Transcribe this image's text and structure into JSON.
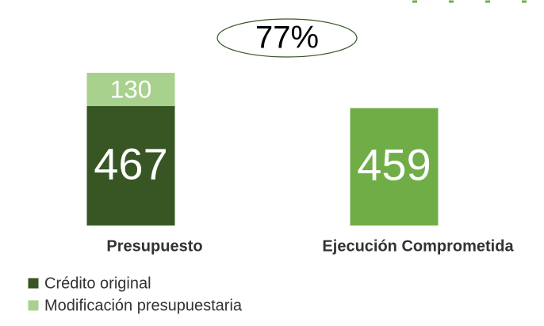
{
  "chart_data": {
    "type": "bar",
    "stacked": true,
    "annotation": "77%",
    "categories": [
      "Presupuesto",
      "Ejecución Comprometida"
    ],
    "series": [
      {
        "name": "Crédito original",
        "color": "#375623",
        "values": [
          467,
          null
        ]
      },
      {
        "name": "Modificación presupuestaria",
        "color": "#a9d18e",
        "values": [
          130,
          null
        ]
      },
      {
        "color": "#70ad47",
        "values": [
          null,
          459
        ]
      }
    ]
  }
}
